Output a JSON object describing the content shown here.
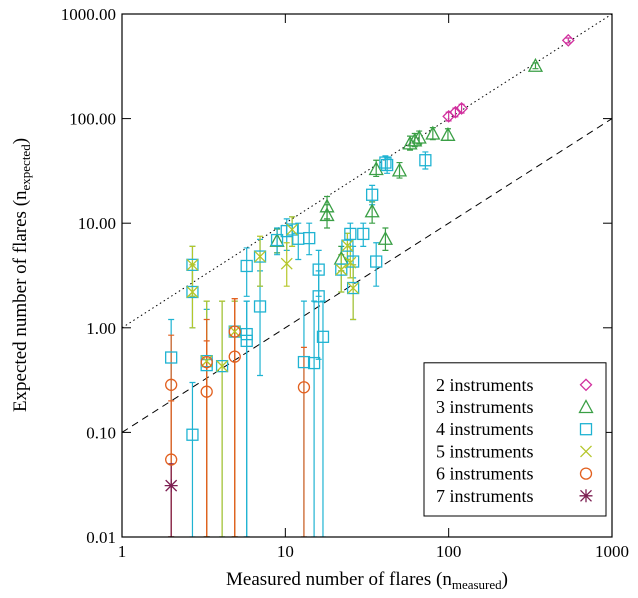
{
  "chart_data": {
    "type": "scatter",
    "xlabel": {
      "text": "Measured number of flares (n",
      "sub": "measured",
      "end": ")"
    },
    "ylabel": {
      "text": "Expected number of flares (n",
      "sub": "expected",
      "end": ")"
    },
    "xscale": "log",
    "yscale": "log",
    "xlim": [
      1,
      1000
    ],
    "ylim": [
      0.01,
      1000
    ],
    "xticks": [
      1,
      10,
      100,
      1000
    ],
    "yticks": [
      {
        "value": 0.01,
        "label": "0.01"
      },
      {
        "value": 0.1,
        "label": "0.10"
      },
      {
        "value": 1,
        "label": "1.00"
      },
      {
        "value": 10,
        "label": "10.00"
      },
      {
        "value": 100,
        "label": "100.00"
      },
      {
        "value": 1000,
        "label": "1000.00"
      }
    ],
    "reference_lines": [
      {
        "slope": 1,
        "style": "dotted"
      },
      {
        "slope": 0.1,
        "style": "dashed"
      }
    ],
    "legend": "lower right",
    "series": [
      {
        "name": "2 instruments",
        "color": "#d1309e",
        "marker": "diamond",
        "x": [
          100,
          110,
          120,
          540
        ],
        "values": [
          105,
          115,
          125,
          560
        ],
        "lower": [
          95,
          104,
          113,
          530
        ],
        "upper": [
          115,
          126,
          137,
          590
        ]
      },
      {
        "name": "3 instruments",
        "color": "#3a9f45",
        "marker": "triangle",
        "x": [
          8.9,
          18,
          18,
          22,
          34,
          36,
          41,
          50,
          58,
          62,
          66,
          80,
          99,
          340
        ],
        "values": [
          6.8,
          14.5,
          12,
          4.6,
          13,
          33,
          7.1,
          32,
          58,
          62,
          66,
          72,
          70,
          320
        ],
        "lower": [
          5.2,
          11,
          9,
          3.5,
          10,
          28,
          5.5,
          27,
          50,
          54,
          57,
          63,
          62,
          300
        ],
        "upper": [
          8.8,
          18,
          15,
          6,
          16,
          40,
          9,
          38,
          68,
          72,
          76,
          82,
          80,
          340
        ]
      },
      {
        "name": "4 instruments",
        "color": "#1fb3d2",
        "marker": "square",
        "x": [
          2,
          2.7,
          2.7,
          2.7,
          3.3,
          3.3,
          4.1,
          4.9,
          5.8,
          5.8,
          5.8,
          7,
          7,
          8.9,
          10.2,
          11,
          12,
          14,
          16,
          16,
          17,
          13,
          15,
          22,
          24,
          25,
          26,
          26,
          30,
          34,
          36,
          41,
          42,
          72
        ],
        "values": [
          0.52,
          4.0,
          2.2,
          0.095,
          0.48,
          0.44,
          0.43,
          0.92,
          3.9,
          0.87,
          0.75,
          1.6,
          4.8,
          6.9,
          8.4,
          8.7,
          7.1,
          7.2,
          3.6,
          2.0,
          0.82,
          0.47,
          0.46,
          3.6,
          6.1,
          7.9,
          4.3,
          2.4,
          7.9,
          18.7,
          4.3,
          38,
          36,
          40
        ],
        "lower": [
          0.01,
          2.0,
          1.0,
          0.01,
          0.01,
          0.01,
          0.01,
          0.01,
          2.0,
          0.01,
          0.01,
          0.35,
          2.5,
          5,
          5.5,
          6,
          4.5,
          5,
          2,
          0.5,
          0.01,
          0.01,
          0.01,
          2.2,
          4.5,
          6,
          3,
          1.2,
          6,
          15,
          2.5,
          32,
          30,
          33
        ],
        "upper": [
          1.2,
          6.0,
          4.0,
          0.3,
          1.8,
          1.5,
          1.8,
          1.8,
          5.8,
          1.8,
          1.8,
          3.5,
          7,
          9,
          11,
          11.5,
          10,
          10,
          5.5,
          3.5,
          1.8,
          1.8,
          1.8,
          5,
          8,
          10,
          6,
          4,
          10,
          23,
          6.5,
          44,
          42,
          48
        ]
      },
      {
        "name": "5 instruments",
        "color": "#b5c62a",
        "marker": "x",
        "x": [
          2.7,
          2.7,
          3.3,
          4.1,
          4.9,
          7,
          10.2,
          11,
          22,
          24,
          25,
          26
        ],
        "values": [
          4.0,
          2.2,
          0.48,
          0.43,
          0.92,
          4.8,
          4.1,
          8.7,
          3.6,
          6.1,
          4.2,
          2.4
        ],
        "lower": [
          2,
          1,
          0.01,
          0.01,
          0.01,
          2.5,
          2.5,
          6,
          2.2,
          4.5,
          3,
          1.2
        ],
        "upper": [
          6,
          4,
          1.8,
          1.8,
          1.8,
          7.5,
          6.5,
          11.5,
          5,
          8,
          6,
          4
        ]
      },
      {
        "name": "6 instruments",
        "color": "#e2601f",
        "marker": "circle",
        "x": [
          2,
          2,
          3.3,
          3.3,
          4.9,
          4.9,
          13
        ],
        "values": [
          0.285,
          0.055,
          0.245,
          0.47,
          0.53,
          0.92,
          0.27
        ],
        "lower": [
          0.01,
          0.01,
          0.01,
          0.01,
          0.01,
          0.01,
          0.01
        ],
        "upper": [
          0.85,
          0.2,
          0.75,
          1.2,
          1.9,
          1.9,
          0.65
        ]
      },
      {
        "name": "7 instruments",
        "color": "#7d1f52",
        "marker": "asterisk",
        "x": [
          2
        ],
        "values": [
          0.031
        ],
        "lower": [
          0.01
        ],
        "upper": [
          0.05
        ]
      }
    ]
  }
}
